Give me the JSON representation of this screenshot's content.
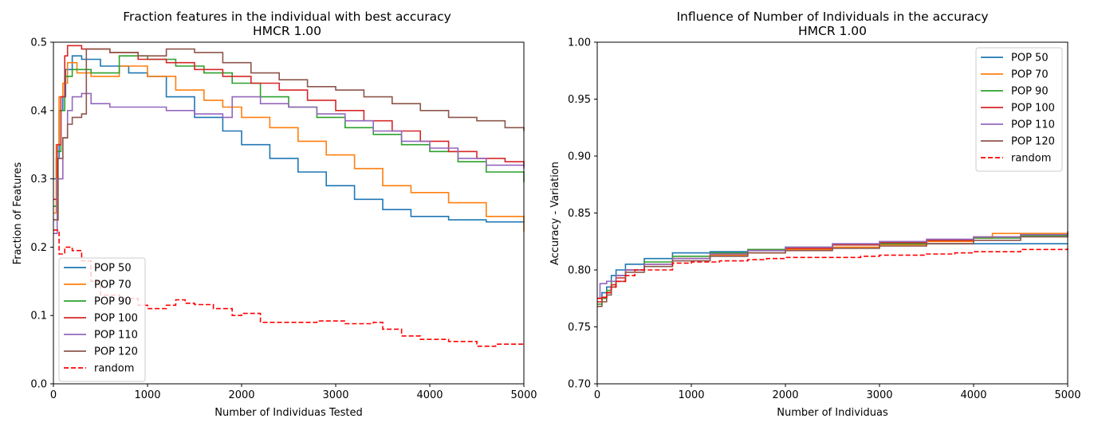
{
  "chart_data": [
    {
      "type": "line",
      "title": "Fraction features in the individual with best accuracy",
      "subtitle": "HMCR 1.00",
      "xlabel": "Number of Individuas Tested",
      "ylabel": "Fraction of Features",
      "xlim": [
        0,
        5000
      ],
      "ylim": [
        0,
        0.5
      ],
      "xticks": [
        0,
        1000,
        2000,
        3000,
        4000,
        5000
      ],
      "yticks": [
        0.0,
        0.1,
        0.2,
        0.3,
        0.4,
        0.5
      ],
      "xtick_labels": [
        "0",
        "1000",
        "2000",
        "3000",
        "4000",
        "5000"
      ],
      "ytick_labels": [
        "0.0",
        "0.1",
        "0.2",
        "0.3",
        "0.4",
        "0.5"
      ],
      "grid": false,
      "legend": "lower-left",
      "series": [
        {
          "name": "POP 50",
          "color": "#1f77b4",
          "dashed": false,
          "x": [
            0,
            30,
            60,
            100,
            130,
            200,
            300,
            500,
            800,
            1000,
            1200,
            1500,
            1800,
            2000,
            2300,
            2600,
            2900,
            3200,
            3500,
            3800,
            4200,
            4600,
            5000
          ],
          "y": [
            0.3,
            0.33,
            0.4,
            0.42,
            0.46,
            0.48,
            0.475,
            0.465,
            0.455,
            0.45,
            0.42,
            0.39,
            0.37,
            0.35,
            0.33,
            0.31,
            0.29,
            0.27,
            0.255,
            0.245,
            0.24,
            0.237,
            0.236
          ]
        },
        {
          "name": "POP 70",
          "color": "#ff7f0e",
          "dashed": false,
          "x": [
            0,
            30,
            60,
            100,
            150,
            250,
            400,
            700,
            1000,
            1300,
            1600,
            1800,
            2000,
            2300,
            2600,
            2900,
            3200,
            3500,
            3800,
            4200,
            4600,
            5000
          ],
          "y": [
            0.25,
            0.35,
            0.42,
            0.44,
            0.47,
            0.455,
            0.45,
            0.465,
            0.45,
            0.43,
            0.415,
            0.405,
            0.39,
            0.375,
            0.355,
            0.335,
            0.315,
            0.29,
            0.28,
            0.265,
            0.245,
            0.223
          ]
        },
        {
          "name": "POP 90",
          "color": "#2ca02c",
          "dashed": false,
          "x": [
            0,
            40,
            80,
            120,
            200,
            400,
            700,
            1000,
            1300,
            1600,
            1900,
            2200,
            2500,
            2800,
            3100,
            3400,
            3700,
            4000,
            4300,
            4600,
            5000
          ],
          "y": [
            0.26,
            0.34,
            0.4,
            0.45,
            0.46,
            0.455,
            0.48,
            0.475,
            0.465,
            0.455,
            0.44,
            0.42,
            0.405,
            0.39,
            0.375,
            0.365,
            0.35,
            0.34,
            0.325,
            0.31,
            0.295
          ]
        },
        {
          "name": "POP 100",
          "color": "#d62728",
          "dashed": false,
          "x": [
            0,
            40,
            80,
            120,
            150,
            300,
            600,
            900,
            1200,
            1500,
            1800,
            2100,
            2400,
            2700,
            3000,
            3300,
            3600,
            3900,
            4200,
            4500,
            4800,
            5000
          ],
          "y": [
            0.27,
            0.35,
            0.42,
            0.48,
            0.495,
            0.49,
            0.485,
            0.475,
            0.47,
            0.46,
            0.45,
            0.44,
            0.43,
            0.415,
            0.4,
            0.385,
            0.37,
            0.355,
            0.34,
            0.33,
            0.325,
            0.318
          ]
        },
        {
          "name": "POP 110",
          "color": "#9467bd",
          "dashed": false,
          "x": [
            0,
            40,
            100,
            150,
            200,
            300,
            400,
            600,
            900,
            1200,
            1500,
            1800,
            1900,
            2200,
            2500,
            2800,
            3100,
            3400,
            3700,
            4000,
            4300,
            4600,
            5000
          ],
          "y": [
            0.22,
            0.3,
            0.36,
            0.4,
            0.42,
            0.425,
            0.41,
            0.405,
            0.405,
            0.4,
            0.395,
            0.39,
            0.42,
            0.41,
            0.405,
            0.395,
            0.385,
            0.37,
            0.355,
            0.345,
            0.33,
            0.32,
            0.315
          ]
        },
        {
          "name": "POP 120",
          "color": "#8c564b",
          "dashed": false,
          "x": [
            0,
            50,
            100,
            150,
            200,
            250,
            300,
            350,
            600,
            900,
            1200,
            1500,
            1800,
            2100,
            2400,
            2700,
            3000,
            3300,
            3600,
            3900,
            4200,
            4500,
            4800,
            5000
          ],
          "y": [
            0.24,
            0.33,
            0.36,
            0.38,
            0.39,
            0.39,
            0.395,
            0.49,
            0.485,
            0.48,
            0.49,
            0.485,
            0.47,
            0.455,
            0.445,
            0.435,
            0.43,
            0.42,
            0.41,
            0.4,
            0.39,
            0.385,
            0.375,
            0.37
          ]
        },
        {
          "name": "random",
          "color": "#ff0000",
          "dashed": true,
          "x": [
            0,
            60,
            120,
            200,
            300,
            400,
            500,
            700,
            900,
            1000,
            1200,
            1300,
            1400,
            1500,
            1700,
            1900,
            2000,
            2200,
            2500,
            2800,
            3100,
            3400,
            3500,
            3700,
            3900,
            4200,
            4500,
            4700,
            5000
          ],
          "y": [
            0.225,
            0.19,
            0.2,
            0.195,
            0.18,
            0.15,
            0.13,
            0.125,
            0.115,
            0.11,
            0.115,
            0.123,
            0.118,
            0.116,
            0.11,
            0.1,
            0.103,
            0.09,
            0.09,
            0.092,
            0.088,
            0.09,
            0.08,
            0.07,
            0.065,
            0.062,
            0.055,
            0.058,
            0.059
          ]
        }
      ]
    },
    {
      "type": "line",
      "title": "Influence of Number of Individuals in the accuracy",
      "subtitle": "HMCR 1.00",
      "xlabel": "Number of Individuas",
      "ylabel": "Accuracy - Variation",
      "xlim": [
        0,
        5000
      ],
      "ylim": [
        0.7,
        1.0
      ],
      "xticks": [
        0,
        1000,
        2000,
        3000,
        4000,
        5000
      ],
      "yticks": [
        0.7,
        0.75,
        0.8,
        0.85,
        0.9,
        0.95,
        1.0
      ],
      "xtick_labels": [
        "0",
        "1000",
        "2000",
        "3000",
        "4000",
        "5000"
      ],
      "ytick_labels": [
        "0.70",
        "0.75",
        "0.80",
        "0.85",
        "0.90",
        "0.95",
        "1.00"
      ],
      "grid": false,
      "legend": "upper-right",
      "series": [
        {
          "name": "POP 50",
          "color": "#1f77b4",
          "dashed": false,
          "x": [
            0,
            50,
            100,
            150,
            200,
            300,
            500,
            800,
            1200,
            1600,
            2000,
            2500,
            3000,
            3500,
            4000,
            4500,
            5000
          ],
          "y": [
            0.775,
            0.78,
            0.785,
            0.795,
            0.8,
            0.805,
            0.81,
            0.815,
            0.816,
            0.818,
            0.82,
            0.822,
            0.823,
            0.823,
            0.823,
            0.823,
            0.823
          ]
        },
        {
          "name": "POP 70",
          "color": "#ff7f0e",
          "dashed": false,
          "x": [
            0,
            50,
            100,
            150,
            200,
            300,
            500,
            800,
            1200,
            1600,
            2000,
            2500,
            3000,
            3500,
            4000,
            4200,
            4600,
            5000
          ],
          "y": [
            0.772,
            0.775,
            0.78,
            0.785,
            0.79,
            0.8,
            0.805,
            0.81,
            0.813,
            0.815,
            0.818,
            0.82,
            0.822,
            0.825,
            0.828,
            0.832,
            0.832,
            0.832
          ]
        },
        {
          "name": "POP 90",
          "color": "#2ca02c",
          "dashed": false,
          "x": [
            0,
            50,
            100,
            150,
            200,
            300,
            500,
            800,
            1200,
            1600,
            2000,
            2500,
            3000,
            3500,
            4000,
            4500,
            5000
          ],
          "y": [
            0.77,
            0.775,
            0.782,
            0.79,
            0.795,
            0.8,
            0.807,
            0.812,
            0.815,
            0.818,
            0.82,
            0.822,
            0.823,
            0.826,
            0.828,
            0.83,
            0.832
          ]
        },
        {
          "name": "POP 100",
          "color": "#d62728",
          "dashed": false,
          "x": [
            0,
            50,
            100,
            150,
            200,
            300,
            500,
            800,
            1200,
            1600,
            2000,
            2500,
            3000,
            3500,
            4000,
            4500,
            5000
          ],
          "y": [
            0.772,
            0.776,
            0.78,
            0.787,
            0.793,
            0.8,
            0.805,
            0.81,
            0.814,
            0.817,
            0.819,
            0.822,
            0.824,
            0.826,
            0.829,
            0.831,
            0.834
          ]
        },
        {
          "name": "POP 110",
          "color": "#9467bd",
          "dashed": false,
          "x": [
            0,
            30,
            60,
            100,
            200,
            300,
            500,
            800,
            1200,
            1600,
            2000,
            2500,
            3000,
            3500,
            4000,
            4500,
            5000
          ],
          "y": [
            0.775,
            0.788,
            0.788,
            0.79,
            0.795,
            0.8,
            0.805,
            0.81,
            0.814,
            0.817,
            0.82,
            0.823,
            0.825,
            0.827,
            0.829,
            0.831,
            0.833
          ]
        },
        {
          "name": "POP 120",
          "color": "#8c564b",
          "dashed": false,
          "x": [
            0,
            50,
            100,
            150,
            200,
            300,
            500,
            800,
            1200,
            1600,
            2000,
            2500,
            3000,
            3500,
            4000,
            4500,
            5000
          ],
          "y": [
            0.768,
            0.772,
            0.778,
            0.785,
            0.79,
            0.798,
            0.803,
            0.808,
            0.812,
            0.815,
            0.817,
            0.819,
            0.821,
            0.823,
            0.826,
            0.829,
            0.83
          ]
        },
        {
          "name": "random",
          "color": "#ff0000",
          "dashed": true,
          "x": [
            0,
            50,
            100,
            150,
            200,
            300,
            400,
            700,
            800,
            1000,
            1300,
            1600,
            1800,
            2000,
            2500,
            2800,
            3000,
            3500,
            3800,
            4000,
            4500,
            4800,
            5000
          ],
          "y": [
            0.775,
            0.776,
            0.78,
            0.785,
            0.79,
            0.795,
            0.8,
            0.8,
            0.806,
            0.807,
            0.808,
            0.809,
            0.81,
            0.811,
            0.811,
            0.812,
            0.813,
            0.814,
            0.815,
            0.816,
            0.818,
            0.818,
            0.819
          ]
        }
      ]
    }
  ]
}
